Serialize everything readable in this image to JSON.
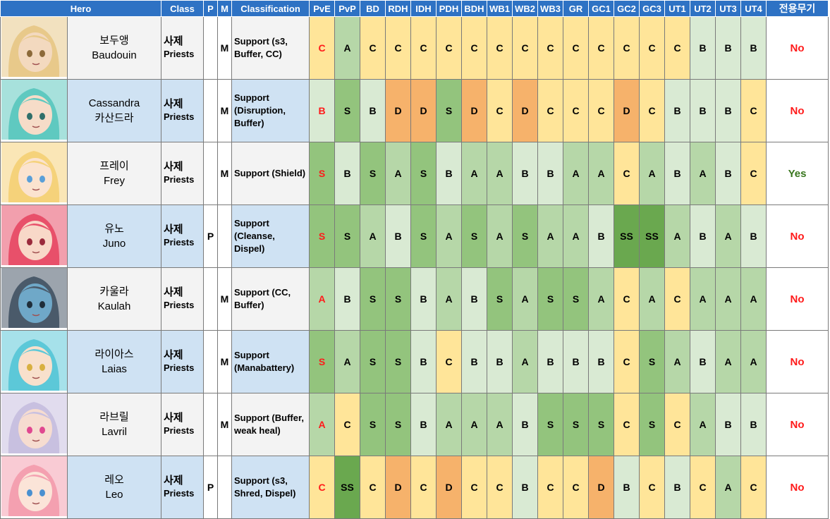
{
  "headers": [
    "Hero",
    "Class",
    "P",
    "M",
    "Classification",
    "PvE",
    "PvP",
    "BD",
    "RDH",
    "IDH",
    "PDH",
    "BDH",
    "WB1",
    "WB2",
    "WB3",
    "GR",
    "GC1",
    "GC2",
    "GC3",
    "UT1",
    "UT2",
    "UT3",
    "UT4",
    "전용무기"
  ],
  "grade_colors": {
    "SS": "#6aa84f",
    "S": "#93c47d",
    "A": "#b6d7a8",
    "B": "#d9ead3",
    "C": "#ffe599",
    "D": "#f6b26b"
  },
  "rows": [
    {
      "portrait": "baudouin-portrait",
      "hair": "#e8c98a",
      "skin": "#f3d9bf",
      "accent": "#8c6a3a",
      "name_ko": "보두앵",
      "name_en": "Baudouin",
      "class_ko": "사제",
      "class_en": "Priests",
      "p": "",
      "m": "M",
      "classification": [
        "Support (s3,",
        "Buffer, CC)"
      ],
      "pve": "C",
      "grades": [
        "A",
        "C",
        "C",
        "C",
        "C",
        "C",
        "C",
        "C",
        "C",
        "C",
        "C",
        "C",
        "C",
        "C",
        "B",
        "B",
        "B"
      ],
      "exclusive": "No"
    },
    {
      "portrait": "cassandra-portrait",
      "hair": "#5fc9c0",
      "skin": "#f6dcc8",
      "accent": "#2f6f6a",
      "name_ko": "카산드라",
      "name_en": "Cassandra",
      "class_ko": "사제",
      "class_en": "Priests",
      "p": "",
      "m": "M",
      "classification": [
        "Support",
        "(Disruption,",
        "Buffer)"
      ],
      "pve": "B",
      "grades": [
        "S",
        "B",
        "D",
        "D",
        "S",
        "D",
        "C",
        "D",
        "C",
        "C",
        "C",
        "D",
        "C",
        "B",
        "B",
        "B",
        "C"
      ],
      "exclusive": "No"
    },
    {
      "portrait": "frey-portrait",
      "hair": "#f5d27a",
      "skin": "#fbe3cf",
      "accent": "#5a9fd8",
      "name_ko": "프레이",
      "name_en": "Frey",
      "class_ko": "사제",
      "class_en": "Priests",
      "p": "",
      "m": "M",
      "classification": [
        "Support (Shield)"
      ],
      "pve": "S",
      "grades": [
        "B",
        "S",
        "A",
        "S",
        "B",
        "A",
        "A",
        "B",
        "B",
        "A",
        "A",
        "C",
        "A",
        "B",
        "A",
        "B",
        "C"
      ],
      "exclusive": "Yes"
    },
    {
      "portrait": "juno-portrait",
      "hair": "#e8506a",
      "skin": "#f8d8c8",
      "accent": "#9a2a3c",
      "name_ko": "유노",
      "name_en": "Juno",
      "class_ko": "사제",
      "class_en": "Priests",
      "p": "P",
      "m": "",
      "classification": [
        "Support",
        "(Cleanse,",
        "Dispel)"
      ],
      "pve": "S",
      "grades": [
        "S",
        "A",
        "B",
        "S",
        "A",
        "S",
        "A",
        "S",
        "A",
        "A",
        "B",
        "SS",
        "SS",
        "A",
        "B",
        "A",
        "B"
      ],
      "exclusive": "No"
    },
    {
      "portrait": "kaulah-portrait",
      "hair": "#4a5a6a",
      "skin": "#6fa8c8",
      "accent": "#1f2e3a",
      "name_ko": "카울라",
      "name_en": "Kaulah",
      "class_ko": "사제",
      "class_en": "Priests",
      "p": "",
      "m": "M",
      "classification": [
        "Support (CC,",
        "Buffer)"
      ],
      "pve": "A",
      "grades": [
        "B",
        "S",
        "S",
        "B",
        "A",
        "B",
        "S",
        "A",
        "S",
        "S",
        "A",
        "C",
        "A",
        "C",
        "A",
        "A",
        "A"
      ],
      "exclusive": "No"
    },
    {
      "portrait": "laias-portrait",
      "hair": "#5cc8d8",
      "skin": "#f8e0cc",
      "accent": "#d8b040",
      "name_ko": "라이아스",
      "name_en": "Laias",
      "class_ko": "사제",
      "class_en": "Priests",
      "p": "",
      "m": "M",
      "classification": [
        "Support",
        "(Manabattery)"
      ],
      "pve": "S",
      "grades": [
        "A",
        "S",
        "S",
        "B",
        "C",
        "B",
        "B",
        "A",
        "B",
        "B",
        "B",
        "C",
        "S",
        "A",
        "B",
        "A",
        "A"
      ],
      "exclusive": "No"
    },
    {
      "portrait": "lavril-portrait",
      "hair": "#c8c0e0",
      "skin": "#f6dcd0",
      "accent": "#e04890",
      "name_ko": "라브릴",
      "name_en": "Lavril",
      "class_ko": "사제",
      "class_en": "Priests",
      "p": "",
      "m": "M",
      "classification": [
        "Support (Buffer,",
        "weak heal)"
      ],
      "pve": "A",
      "grades": [
        "C",
        "S",
        "S",
        "B",
        "A",
        "A",
        "A",
        "B",
        "S",
        "S",
        "S",
        "C",
        "S",
        "C",
        "A",
        "B",
        "B"
      ],
      "exclusive": "No"
    },
    {
      "portrait": "leo-portrait",
      "hair": "#f4a0b0",
      "skin": "#fbe4d8",
      "accent": "#4a90d0",
      "name_ko": "레오",
      "name_en": "Leo",
      "class_ko": "사제",
      "class_en": "Priests",
      "p": "P",
      "m": "",
      "classification": [
        "Support (s3,",
        "Shred, Dispel)"
      ],
      "pve": "C",
      "grades": [
        "SS",
        "C",
        "D",
        "C",
        "D",
        "C",
        "C",
        "B",
        "C",
        "C",
        "D",
        "B",
        "C",
        "B",
        "C",
        "A",
        "C"
      ],
      "exclusive": "No"
    }
  ]
}
